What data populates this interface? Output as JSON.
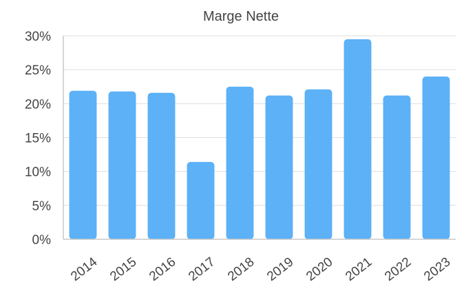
{
  "chart_data": {
    "type": "bar",
    "title": "Marge Nette",
    "xlabel": "",
    "ylabel": "",
    "categories": [
      "2014",
      "2015",
      "2016",
      "2017",
      "2018",
      "2019",
      "2020",
      "2021",
      "2022",
      "2023"
    ],
    "values": [
      21.9,
      21.8,
      21.6,
      11.4,
      22.5,
      21.2,
      22.1,
      29.5,
      21.2,
      24.0
    ],
    "ylim": [
      0,
      30
    ],
    "yticks": [
      0,
      5,
      10,
      15,
      20,
      25,
      30
    ],
    "ytick_labels": [
      "0%",
      "5%",
      "10%",
      "15%",
      "20%",
      "25%",
      "30%"
    ],
    "grid": true,
    "legend": "none",
    "bar_color": "#5cb1f7"
  }
}
